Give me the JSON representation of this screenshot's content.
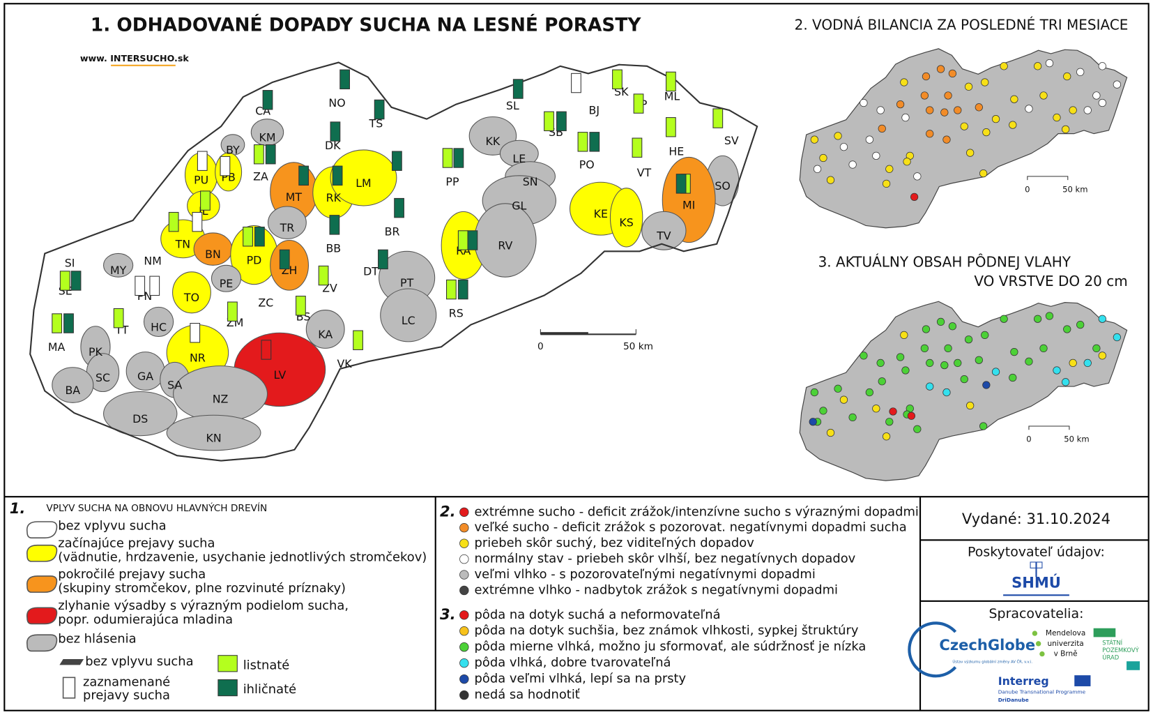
{
  "header": {
    "title": "1. ODHADOVANÉ DOPADY SUCHA NA LESNÉ PORASTY",
    "website": "www. INTERSUCHO.sk"
  },
  "map1": {
    "districts": [
      "CA",
      "NO",
      "TS",
      "SL",
      "SK",
      "ML",
      "SP",
      "BJ",
      "KM",
      "BY",
      "DK",
      "SB",
      "KK",
      "HE",
      "SV",
      "PU",
      "PB",
      "ZA",
      "MT",
      "RK",
      "LM",
      "LE",
      "PO",
      "VT",
      "SN",
      "PP",
      "SO",
      "IL",
      "TR",
      "BR",
      "GL",
      "KE",
      "KS",
      "MI",
      "TN",
      "BN",
      "PD",
      "BB",
      "RA",
      "RV",
      "TV",
      "NM",
      "SI",
      "MY",
      "PE",
      "ZH",
      "DT",
      "PT",
      "SE",
      "PN",
      "TO",
      "ZC",
      "ZV",
      "RS",
      "BS",
      "TT",
      "HC",
      "ZM",
      "LC",
      "KA",
      "MA",
      "PK",
      "NR",
      "LV",
      "VK",
      "GA",
      "SC",
      "SA",
      "BA",
      "NZ",
      "DS",
      "KN"
    ],
    "scale_start": "0",
    "scale_end": "50 km"
  },
  "map2": {
    "title": "2. VODNÁ BILANCIA ZA POSLEDNÉ TRI MESIACE",
    "scale_start": "0",
    "scale_end": "50 km"
  },
  "map3": {
    "title_line1": "3. AKTUÁLNY OBSAH PÔDNEJ VLAHY",
    "title_line2": "VO VRSTVE DO 20 cm",
    "scale_start": "0",
    "scale_end": "50 km"
  },
  "legend1": {
    "number": "1.",
    "title": "VPLYV SUCHA NA OBNOVU HLAVNÝCH DREVÍN",
    "items": [
      [
        "bez vplyvu sucha"
      ],
      [
        "začínajúce prejavy sucha",
        "(vädnutie, hrdzavenie, usychanie jednotlivých stromčekov)"
      ],
      [
        "pokročilé prejavy sucha",
        "(skupiny stromčekov, plne rozvinuté príznaky)"
      ],
      [
        "zlyhanie výsadby s výrazným podielom sucha,",
        "popr. odumierajúca mladina"
      ],
      [
        "bez hlásenia"
      ]
    ],
    "bar_none": "bez vplyvu sucha",
    "bar_symptoms": [
      "zaznamenané",
      "prejavy sucha"
    ],
    "deciduous": "listnaté",
    "coniferous": "ihličnaté"
  },
  "legend2": {
    "number": "2.",
    "items": [
      "extrémne sucho - deficit zrážok/intenzívne sucho s výraznými dopadmi",
      "veľké sucho - deficit zrážok s pozorovat. negatívnymi dopadmi sucha",
      "priebeh skôr suchý, bez viditeľných dopadov",
      "normálny stav - priebeh skôr vlhší, bez negatívnych dopadov",
      "veľmi vlhko - s pozorovateľnými negatívnymi dopadmi",
      "extrémne vlhko - nadbytok zrážok s negatívnymi dopadmi"
    ]
  },
  "legend3": {
    "number": "3.",
    "items": [
      "pôda na dotyk suchá a neformovateľná",
      "pôda na dotyk suchšia, bez známok vlhkosti, sypkej štruktúry",
      "pôda mierne vlhká, možno ju sformovať, ale súdržnosť je nízka",
      "pôda vlhká, dobre tvarovateľná",
      "pôda veľmi vlhká, lepí sa na prsty",
      "nedá sa hodnotiť"
    ]
  },
  "info": {
    "issued": "Vydané: 31.10.2024",
    "provider_label": "Poskytovateľ údajov:",
    "provider": "SHMÚ",
    "processors_label": "Spracovatelia:",
    "czechglobe": "CzechGlobe",
    "czechglobe_sub": "Ústav výzkumu globální změny AV ČR, v.v.i.",
    "mendel": [
      "Mendelova",
      "univerzita",
      "v Brně"
    ],
    "spu": [
      "STÁTNÍ",
      "POZEMKOVÝ",
      "ÚRAD"
    ],
    "interreg": "Interreg",
    "interreg_sub": "Danube Transnational Programme",
    "project": "DriDanube"
  }
}
